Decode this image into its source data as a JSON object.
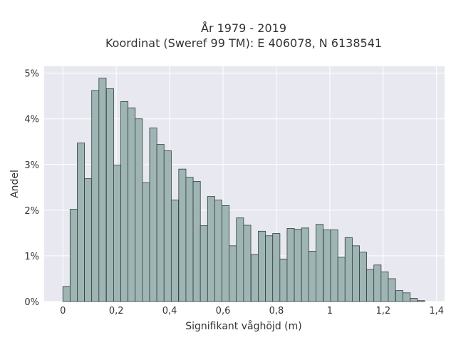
{
  "chart_data": {
    "type": "bar",
    "title_lines": [
      "År 1979 - 2019",
      "Koordinat (Sweref 99 TM): E 406078, N 6138541"
    ],
    "xlabel": "Signifikant våghöjd (m)",
    "ylabel": "Andel",
    "xlim": [
      -0.07,
      1.43
    ],
    "ylim": [
      0,
      5.15
    ],
    "bin_width": 0.0271,
    "x_ticks": [
      {
        "value": 0,
        "label": "0"
      },
      {
        "value": 0.2,
        "label": "0,2"
      },
      {
        "value": 0.4,
        "label": "0,4"
      },
      {
        "value": 0.6,
        "label": "0,6"
      },
      {
        "value": 0.8,
        "label": "0,8"
      },
      {
        "value": 1.0,
        "label": "1"
      },
      {
        "value": 1.2,
        "label": "1,2"
      },
      {
        "value": 1.4,
        "label": "1,4"
      }
    ],
    "y_ticks": [
      {
        "value": 0,
        "label": "0%"
      },
      {
        "value": 1,
        "label": "1%"
      },
      {
        "value": 2,
        "label": "2%"
      },
      {
        "value": 3,
        "label": "3%"
      },
      {
        "value": 4,
        "label": "4%"
      },
      {
        "value": 5,
        "label": "5%"
      }
    ],
    "bin_starts": [
      0,
      0.027,
      0.054,
      0.081,
      0.108,
      0.135,
      0.163,
      0.19,
      0.217,
      0.244,
      0.271,
      0.298,
      0.325,
      0.352,
      0.379,
      0.406,
      0.434,
      0.461,
      0.488,
      0.515,
      0.542,
      0.569,
      0.596,
      0.623,
      0.65,
      0.677,
      0.705,
      0.732,
      0.759,
      0.786,
      0.813,
      0.84,
      0.867,
      0.894,
      0.921,
      0.948,
      0.976,
      1.003,
      1.03,
      1.057,
      1.084,
      1.111,
      1.138,
      1.165,
      1.192,
      1.219,
      1.247,
      1.274,
      1.301,
      1.328,
      1.355
    ],
    "values": [
      0.33,
      2.02,
      3.47,
      2.69,
      4.62,
      4.89,
      4.66,
      2.99,
      4.38,
      4.24,
      4.0,
      2.6,
      3.8,
      3.44,
      3.3,
      2.22,
      2.9,
      2.72,
      2.63,
      1.66,
      2.3,
      2.22,
      2.1,
      1.22,
      1.83,
      1.67,
      1.03,
      1.54,
      1.44,
      1.49,
      0.93,
      1.6,
      1.58,
      1.61,
      1.1,
      1.69,
      1.57,
      1.57,
      0.97,
      1.4,
      1.22,
      1.08,
      0.7,
      0.8,
      0.65,
      0.5,
      0.24,
      0.19,
      0.07,
      0.02
    ],
    "colors": {
      "plot_background": "#e8e8f0",
      "grid": "#ffffff",
      "bar_fill": "#9fb5b4",
      "bar_edge": "#2f3f3e"
    },
    "grid": true
  }
}
